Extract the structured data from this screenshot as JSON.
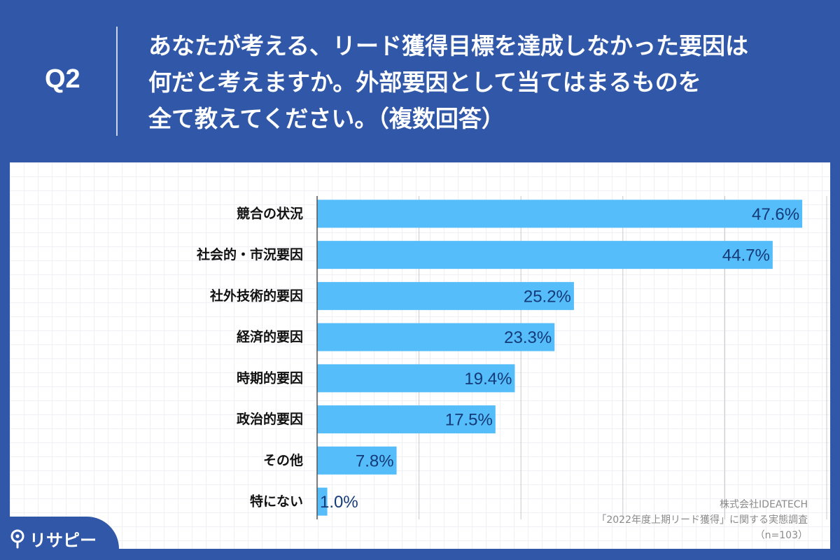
{
  "question": {
    "label": "Q2",
    "lines": [
      "あなたが考える、リード獲得目標を達成しなかった要因は",
      "何だと考えますか。外部要因として当てはまるものを",
      "全て教えてください。（複数回答）"
    ]
  },
  "chart_data": {
    "type": "bar",
    "orientation": "horizontal",
    "categories": [
      "競合の状況",
      "社会的・市況要因",
      "社外技術的要因",
      "経済的要因",
      "時期的要因",
      "政治的要因",
      "その他",
      "特にない"
    ],
    "values": [
      47.6,
      44.7,
      25.2,
      23.3,
      19.4,
      17.5,
      7.8,
      1.0
    ],
    "value_labels": [
      "47.6%",
      "44.7%",
      "25.2%",
      "23.3%",
      "19.4%",
      "17.5%",
      "7.8%",
      "1.0%"
    ],
    "xlim": [
      0,
      50
    ],
    "grid": true,
    "bar_color": "#55bdf9"
  },
  "source": {
    "company": "株式会社IDEATECH",
    "survey": "「2022年度上期リード獲得」に関する実態調査",
    "sample": "（n=103）"
  },
  "logo": {
    "text": "リサピー",
    "icon": "map-pin-icon"
  },
  "colors": {
    "background": "#3158a8",
    "bar": "#55bdf9",
    "value_text": "#153a78"
  }
}
